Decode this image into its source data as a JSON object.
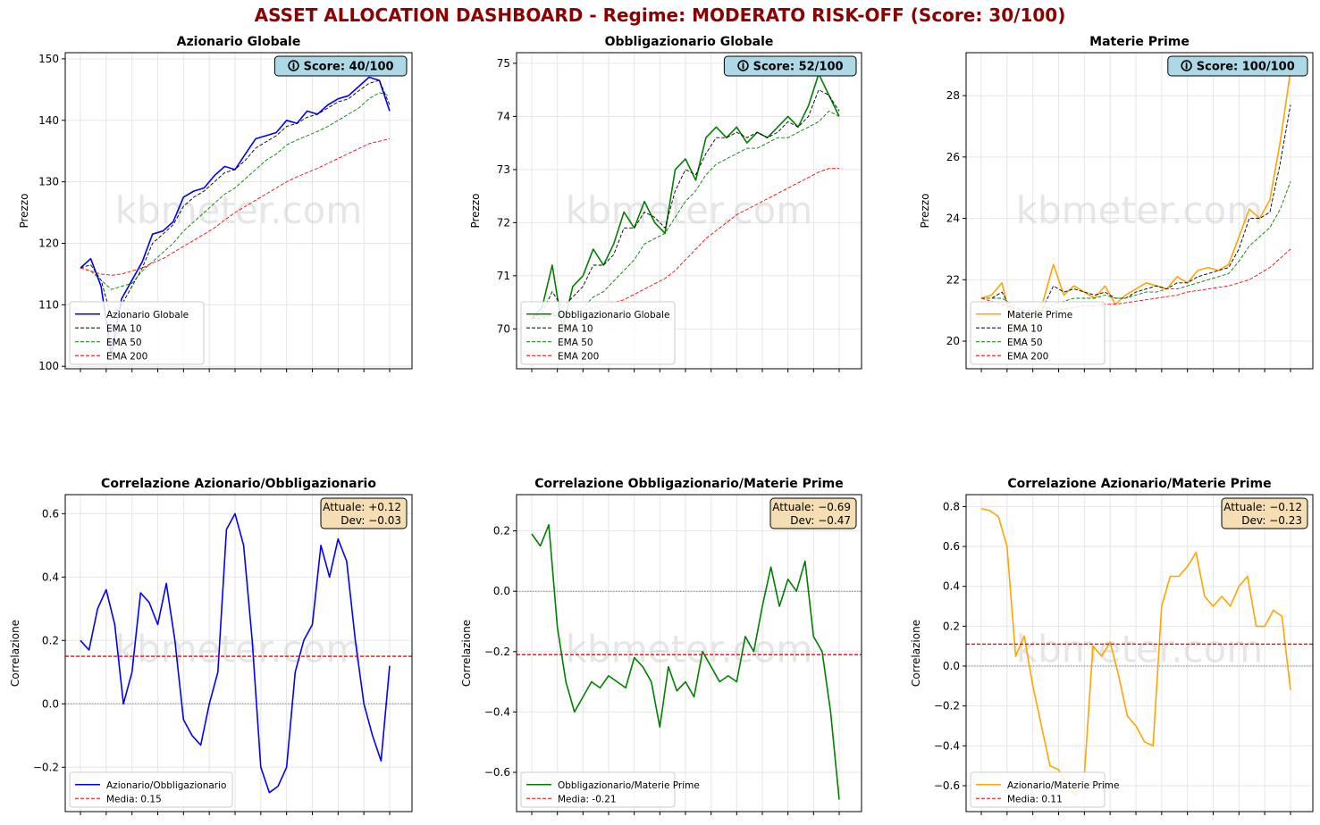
{
  "dashboard": {
    "title": "ASSET ALLOCATION DASHBOARD - Regime: MODERATO RISK-OFF  (Score: 30/100)",
    "title_color": "#8b0000",
    "watermark": "kbmeter.com"
  },
  "colors": {
    "equity": "#0000ff",
    "bonds": "#008000",
    "commodities": "#ffa500",
    "ema10": "#000000",
    "ema50": "#008000",
    "ema200": "#ff0000",
    "score_box": "#add8e6",
    "stats_box": "#f5deb3"
  },
  "chart_data": [
    {
      "type": "line",
      "title": "Azionario Globale",
      "ylabel": "Prezzo",
      "xlabel": "",
      "ylim": [
        99.6,
        151
      ],
      "yticks": [
        100,
        110,
        120,
        130,
        140,
        150
      ],
      "grid": true,
      "legend_position": "lower-left",
      "badge": "🛈 Score: 40/100",
      "x": [
        0,
        6,
        12,
        18,
        24,
        30,
        36,
        42,
        48,
        54,
        60,
        66,
        72,
        78,
        84,
        90,
        96,
        102,
        108,
        114,
        120,
        126,
        132,
        138,
        144,
        150,
        156,
        162,
        168,
        174,
        180
      ],
      "series": [
        {
          "name": "Azionario Globale",
          "color_key": "equity",
          "style": "solid",
          "values": [
            116,
            117.5,
            113,
            101.8,
            111,
            114,
            117,
            121.5,
            122,
            123.5,
            127.5,
            128.5,
            129,
            131,
            132.5,
            132,
            134.5,
            137,
            137.5,
            138,
            140,
            139.5,
            141.5,
            141,
            142.5,
            143.5,
            144,
            145.5,
            147,
            146.5,
            141.5
          ]
        },
        {
          "name": "EMA 10",
          "color_key": "ema10",
          "style": "dashed",
          "values": [
            116,
            116.5,
            114,
            108,
            110,
            113,
            116,
            120,
            121.5,
            123,
            126,
            127.5,
            128.5,
            130,
            131.5,
            132,
            133.5,
            135.5,
            136.5,
            137.5,
            139,
            139.5,
            140.5,
            141,
            142,
            143,
            143.5,
            144.8,
            146,
            146.5,
            142.5
          ]
        },
        {
          "name": "EMA 50",
          "color_key": "ema50",
          "style": "dashed",
          "values": [
            116,
            115.5,
            114,
            112.5,
            113,
            113.5,
            115.5,
            117,
            118.5,
            120,
            122,
            123.5,
            125,
            126.5,
            128,
            129,
            130.5,
            132,
            133.5,
            134.5,
            136,
            136.8,
            137.5,
            138.2,
            139,
            140,
            141,
            142,
            143.5,
            144.5,
            144
          ]
        },
        {
          "name": "EMA 200",
          "color_key": "ema200",
          "style": "dashed",
          "values": [
            116,
            115.5,
            115,
            114.8,
            115,
            115.5,
            116,
            116.8,
            117.5,
            118.5,
            119.5,
            120.5,
            121.5,
            122.5,
            123.8,
            125,
            126,
            127,
            128,
            129,
            130,
            130.8,
            131.5,
            132.2,
            133,
            133.8,
            134.6,
            135.4,
            136.2,
            136.6,
            137
          ]
        }
      ]
    },
    {
      "type": "line",
      "title": "Obbligazionario Globale",
      "ylabel": "Prezzo",
      "xlabel": "",
      "ylim": [
        69.25,
        75.2
      ],
      "yticks": [
        70,
        71,
        72,
        73,
        74,
        75
      ],
      "grid": true,
      "legend_position": "lower-left",
      "badge": "🛈 Score: 52/100",
      "x": [
        0,
        6,
        12,
        18,
        24,
        30,
        36,
        42,
        48,
        54,
        60,
        66,
        72,
        78,
        84,
        90,
        96,
        102,
        108,
        114,
        120,
        126,
        132,
        138,
        144,
        150,
        156,
        162,
        168,
        174,
        180
      ],
      "series": [
        {
          "name": "Obbligazionario Globale",
          "color_key": "bonds",
          "style": "solid",
          "values": [
            70.2,
            70.4,
            71.2,
            70.0,
            70.8,
            71.0,
            71.5,
            71.2,
            71.6,
            72.2,
            71.9,
            72.4,
            72.0,
            71.8,
            73.0,
            73.2,
            72.8,
            73.6,
            73.8,
            73.6,
            73.8,
            73.5,
            73.7,
            73.6,
            73.8,
            74.0,
            73.8,
            74.2,
            74.8,
            74.4,
            74.0
          ]
        },
        {
          "name": "EMA 10",
          "color_key": "ema10",
          "style": "dashed",
          "values": [
            70.2,
            70.3,
            70.7,
            70.4,
            70.6,
            70.8,
            71.2,
            71.2,
            71.4,
            71.9,
            71.9,
            72.2,
            72.1,
            71.9,
            72.6,
            73.0,
            72.9,
            73.3,
            73.6,
            73.6,
            73.7,
            73.6,
            73.7,
            73.6,
            73.7,
            73.9,
            73.8,
            74.0,
            74.5,
            74.4,
            74.1
          ]
        },
        {
          "name": "EMA 50",
          "color_key": "ema50",
          "style": "dashed",
          "values": [
            70.2,
            70.2,
            70.3,
            70.2,
            70.3,
            70.4,
            70.6,
            70.7,
            70.9,
            71.1,
            71.3,
            71.6,
            71.7,
            71.8,
            72.1,
            72.4,
            72.6,
            72.9,
            73.1,
            73.2,
            73.3,
            73.4,
            73.4,
            73.5,
            73.6,
            73.6,
            73.7,
            73.8,
            73.9,
            74.1,
            74.0
          ]
        },
        {
          "name": "EMA 200",
          "color_key": "ema200",
          "style": "dashed",
          "values": [
            70.2,
            70.2,
            70.25,
            70.25,
            70.3,
            70.35,
            70.4,
            70.45,
            70.5,
            70.55,
            70.65,
            70.75,
            70.85,
            70.95,
            71.1,
            71.3,
            71.5,
            71.7,
            71.85,
            72.0,
            72.15,
            72.25,
            72.35,
            72.45,
            72.55,
            72.65,
            72.75,
            72.85,
            72.95,
            73.02,
            73.02
          ]
        }
      ]
    },
    {
      "type": "line",
      "title": "Materie Prime",
      "ylabel": "Prezzo",
      "xlabel": "",
      "ylim": [
        19.1,
        29.4
      ],
      "yticks": [
        20,
        22,
        24,
        26,
        28
      ],
      "grid": true,
      "legend_position": "lower-left",
      "badge": "🛈 Score: 100/100",
      "x": [
        0,
        6,
        12,
        18,
        24,
        30,
        36,
        42,
        48,
        54,
        60,
        66,
        72,
        78,
        84,
        90,
        96,
        102,
        108,
        114,
        120,
        126,
        132,
        138,
        144,
        150,
        156,
        162,
        168,
        174,
        180
      ],
      "series": [
        {
          "name": "Materie Prime",
          "color_key": "commodities",
          "style": "solid",
          "values": [
            21.4,
            21.5,
            21.9,
            20.5,
            20.3,
            20.8,
            21.3,
            22.5,
            21.5,
            21.8,
            21.6,
            21.4,
            21.8,
            21.2,
            21.5,
            21.7,
            21.9,
            21.8,
            21.7,
            22.1,
            21.9,
            22.3,
            22.4,
            22.3,
            22.5,
            23.4,
            24.3,
            24.0,
            24.6,
            26.5,
            28.8
          ]
        },
        {
          "name": "EMA 10",
          "color_key": "ema10",
          "style": "dashed",
          "values": [
            21.4,
            21.4,
            21.6,
            21.0,
            20.7,
            20.8,
            21.1,
            21.8,
            21.6,
            21.7,
            21.6,
            21.5,
            21.6,
            21.4,
            21.4,
            21.6,
            21.7,
            21.8,
            21.7,
            21.9,
            21.9,
            22.1,
            22.2,
            22.3,
            22.4,
            23.0,
            24.0,
            24.0,
            24.2,
            25.8,
            27.7
          ]
        },
        {
          "name": "EMA 50",
          "color_key": "ema50",
          "style": "dashed",
          "values": [
            21.4,
            21.4,
            21.4,
            21.2,
            21.0,
            20.9,
            21.0,
            21.2,
            21.3,
            21.4,
            21.4,
            21.4,
            21.5,
            21.4,
            21.4,
            21.5,
            21.6,
            21.6,
            21.7,
            21.7,
            21.8,
            21.9,
            22.0,
            22.1,
            22.2,
            22.6,
            23.1,
            23.4,
            23.7,
            24.3,
            25.2
          ]
        },
        {
          "name": "EMA 200",
          "color_key": "ema200",
          "style": "dashed",
          "values": [
            21.4,
            21.3,
            21.2,
            21.1,
            21.0,
            21.0,
            20.95,
            21.0,
            21.05,
            21.1,
            21.15,
            21.15,
            21.2,
            21.2,
            21.25,
            21.3,
            21.35,
            21.4,
            21.45,
            21.5,
            21.6,
            21.65,
            21.7,
            21.75,
            21.8,
            21.9,
            22.0,
            22.2,
            22.4,
            22.7,
            23.0
          ]
        }
      ]
    },
    {
      "type": "line",
      "title": "Correlazione Azionario/Obbligazionario",
      "ylabel": "Correlazione",
      "xlabel": "",
      "ylim": [
        -0.34,
        0.66
      ],
      "yticks": [
        -0.2,
        0.0,
        0.2,
        0.4,
        0.6
      ],
      "grid": true,
      "legend_position": "lower-left",
      "zero_line": true,
      "mean_value": 0.15,
      "stats_box": [
        "Attuale: +0.12",
        "Dev: -0.03"
      ],
      "x": [
        0,
        5,
        10,
        15,
        20,
        25,
        30,
        35,
        40,
        45,
        50,
        55,
        60,
        65,
        70,
        75,
        80,
        85,
        90,
        95,
        100,
        105,
        110,
        115,
        120,
        125,
        130,
        135,
        140,
        145,
        150,
        155,
        160,
        165,
        170,
        175,
        180
      ],
      "series": [
        {
          "name": "Azionario/Obbligazionario",
          "color_key": "equity",
          "style": "solid",
          "values": [
            0.2,
            0.17,
            0.3,
            0.36,
            0.25,
            0.0,
            0.1,
            0.35,
            0.32,
            0.25,
            0.38,
            0.2,
            -0.05,
            -0.1,
            -0.13,
            0.0,
            0.1,
            0.55,
            0.6,
            0.5,
            0.2,
            -0.2,
            -0.28,
            -0.26,
            -0.2,
            0.1,
            0.2,
            0.25,
            0.5,
            0.4,
            0.52,
            0.45,
            0.2,
            0.0,
            -0.1,
            -0.18,
            0.12
          ]
        },
        {
          "name": "Media: 0.15",
          "color_key": "ema200",
          "style": "dashed",
          "constant": 0.15
        }
      ]
    },
    {
      "type": "line",
      "title": "Correlazione Obbligazionario/Materie Prime",
      "ylabel": "Correlazione",
      "xlabel": "",
      "ylim": [
        -0.73,
        0.32
      ],
      "yticks": [
        -0.6,
        -0.4,
        -0.2,
        0.0,
        0.2
      ],
      "grid": true,
      "legend_position": "lower-left",
      "zero_line": true,
      "mean_value": -0.21,
      "stats_box": [
        "Attuale: -0.69",
        "Dev: -0.47"
      ],
      "x": [
        0,
        5,
        10,
        15,
        20,
        25,
        30,
        35,
        40,
        45,
        50,
        55,
        60,
        65,
        70,
        75,
        80,
        85,
        90,
        95,
        100,
        105,
        110,
        115,
        120,
        125,
        130,
        135,
        140,
        145,
        150,
        155,
        160,
        165,
        170,
        175,
        180
      ],
      "series": [
        {
          "name": "Obbligazionario/Materie Prime",
          "color_key": "bonds",
          "style": "solid",
          "values": [
            0.19,
            0.15,
            0.22,
            -0.12,
            -0.3,
            -0.4,
            -0.35,
            -0.3,
            -0.32,
            -0.28,
            -0.3,
            -0.32,
            -0.22,
            -0.25,
            -0.3,
            -0.45,
            -0.25,
            -0.33,
            -0.3,
            -0.35,
            -0.2,
            -0.25,
            -0.3,
            -0.28,
            -0.3,
            -0.15,
            -0.2,
            -0.05,
            0.08,
            -0.05,
            0.04,
            0.0,
            0.1,
            -0.15,
            -0.2,
            -0.4,
            -0.69
          ]
        },
        {
          "name": "Media: -0.21",
          "color_key": "ema200",
          "style": "dashed",
          "constant": -0.21
        }
      ]
    },
    {
      "type": "line",
      "title": "Correlazione Azionario/Materie Prime",
      "ylabel": "Correlazione",
      "xlabel": "",
      "ylim": [
        -0.73,
        0.86
      ],
      "yticks": [
        -0.6,
        -0.4,
        -0.2,
        0.0,
        0.2,
        0.4,
        0.6,
        0.8
      ],
      "grid": true,
      "legend_position": "lower-left",
      "zero_line": true,
      "mean_value": 0.11,
      "stats_box": [
        "Attuale: -0.12",
        "Dev: -0.23"
      ],
      "x": [
        0,
        5,
        10,
        15,
        20,
        25,
        30,
        35,
        40,
        45,
        50,
        55,
        60,
        65,
        70,
        75,
        80,
        85,
        90,
        95,
        100,
        105,
        110,
        115,
        120,
        125,
        130,
        135,
        140,
        145,
        150,
        155,
        160,
        165,
        170,
        175,
        180
      ],
      "series": [
        {
          "name": "Azionario/Materie Prime",
          "color_key": "commodities",
          "style": "solid",
          "values": [
            0.79,
            0.78,
            0.75,
            0.6,
            0.05,
            0.15,
            -0.1,
            -0.3,
            -0.5,
            -0.52,
            -0.6,
            -0.65,
            -0.55,
            0.1,
            0.05,
            0.12,
            -0.05,
            -0.25,
            -0.3,
            -0.38,
            -0.4,
            0.3,
            0.45,
            0.45,
            0.5,
            0.57,
            0.35,
            0.3,
            0.35,
            0.3,
            0.4,
            0.45,
            0.2,
            0.2,
            0.28,
            0.25,
            -0.12
          ]
        },
        {
          "name": "Media: 0.11",
          "color_key": "ema200",
          "style": "dashed",
          "constant": 0.11
        }
      ]
    }
  ]
}
